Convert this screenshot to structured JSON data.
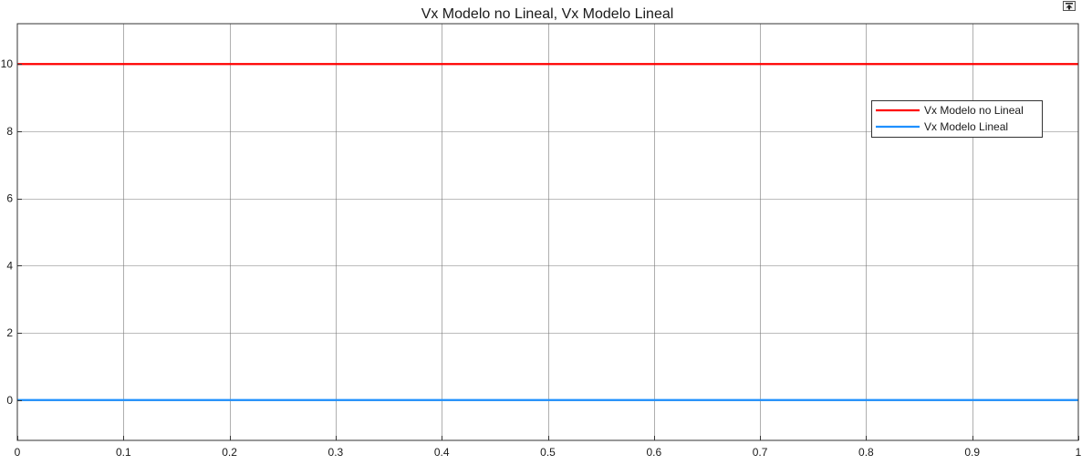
{
  "window": {
    "restore_icon": "restore-icon"
  },
  "chart_data": {
    "type": "line",
    "title": "Vx Modelo no Lineal, Vx Modelo Lineal",
    "xlabel": "",
    "ylabel": "",
    "xlim": [
      0,
      1
    ],
    "ylim": [
      -1.2,
      11.2
    ],
    "xticks": [
      0,
      0.1,
      0.2,
      0.3,
      0.4,
      0.5,
      0.6,
      0.7,
      0.8,
      0.9,
      1
    ],
    "xtick_labels": [
      "0",
      "0.1",
      "0.2",
      "0.3",
      "0.4",
      "0.5",
      "0.6",
      "0.7",
      "0.8",
      "0.9",
      "1"
    ],
    "yticks": [
      0,
      2,
      4,
      6,
      8,
      10
    ],
    "ytick_labels": [
      "0",
      "2",
      "4",
      "6",
      "8",
      "10"
    ],
    "grid": true,
    "legend_position": "top-right",
    "series": [
      {
        "name": "Vx Modelo no Lineal",
        "color": "#ff0000",
        "x": [
          0,
          1
        ],
        "y": [
          10,
          10
        ]
      },
      {
        "name": "Vx Modelo Lineal",
        "color": "#1e90ff",
        "x": [
          0,
          1
        ],
        "y": [
          0,
          0
        ]
      }
    ]
  }
}
